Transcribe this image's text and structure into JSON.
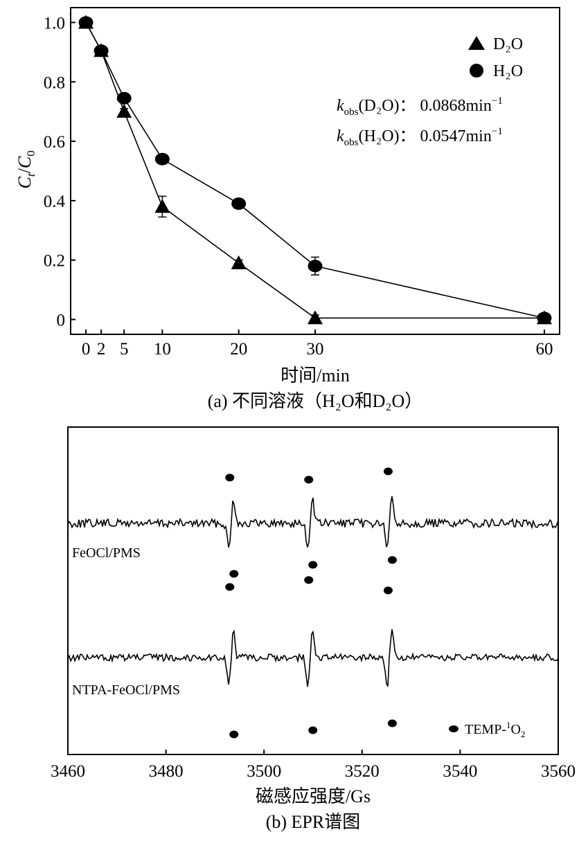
{
  "chart_data": [
    {
      "type": "line",
      "x": [
        0,
        2,
        5,
        10,
        20,
        30,
        60
      ],
      "xticks": [
        0,
        2,
        5,
        10,
        20,
        30,
        60
      ],
      "yticks": [
        0,
        0.2,
        0.4,
        0.6,
        0.8,
        1.0
      ],
      "yticks_label": [
        "0",
        "0.2",
        "0.4",
        "0.6",
        "0.8",
        "1.0"
      ],
      "xlim": [
        -2,
        62
      ],
      "ylim": [
        -0.05,
        1.05
      ],
      "xlabel": "时间/min",
      "ylabel_main": "C",
      "ylabel_sub1": "t",
      "ylabel_main2": "C",
      "ylabel_sub2": "0",
      "caption": "(a) 不同溶液（H₂O和D₂O）",
      "legend_position": "top-right",
      "series": [
        {
          "name": "D₂O",
          "marker": "triangle",
          "values": [
            1.0,
            0.905,
            0.7,
            0.38,
            0.19,
            0.005,
            0.005
          ],
          "errors": [
            0.01,
            0.01,
            0.01,
            0.035,
            0.01,
            0.01,
            0.01
          ]
        },
        {
          "name": "H₂O",
          "marker": "circle",
          "values": [
            1.0,
            0.905,
            0.745,
            0.54,
            0.39,
            0.18,
            0.005
          ],
          "errors": [
            0.01,
            0.01,
            0.01,
            0.01,
            0.01,
            0.03,
            0.01
          ]
        }
      ],
      "annotations": [
        {
          "k": "k",
          "sub": "obs",
          "species": "(D₂O)：",
          "value": "0.0868min",
          "sup": "−1"
        },
        {
          "k": "k",
          "sub": "obs",
          "species": "(H₂O)：",
          "value": "0.0547min",
          "sup": "−1"
        }
      ]
    },
    {
      "type": "line",
      "xlim": [
        3460,
        3560
      ],
      "xticks": [
        3460,
        3480,
        3500,
        3520,
        3540,
        3560
      ],
      "xlabel": "磁感应强度/Gs",
      "caption": "(b) EPR谱图",
      "legend_position": "bottom-right",
      "legend_label": "TEMP-",
      "legend_sup": "1",
      "legend_tail": "O",
      "legend_sub": "2",
      "peak_positions": [
        3493.3,
        3509.4,
        3525.6
      ],
      "traces": [
        {
          "name": "FeOCl/PMS",
          "relative_amplitude": 0.75
        },
        {
          "name": "NTPA-FeOCl/PMS",
          "relative_amplitude": 1.0
        }
      ]
    }
  ]
}
